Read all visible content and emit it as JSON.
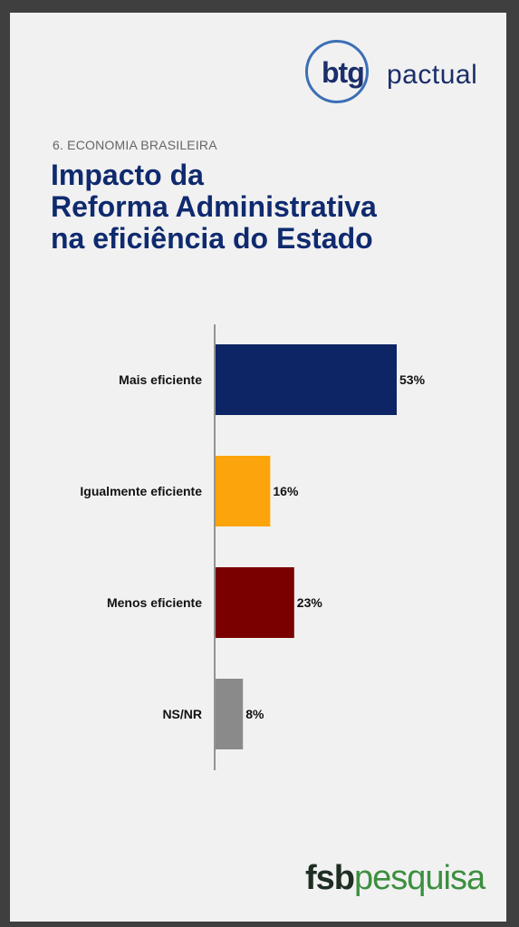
{
  "logo_top": {
    "brand": "btg",
    "brand2": "pactual"
  },
  "section_label": "6. ECONOMIA BRASILEIRA",
  "title_lines": [
    "Impacto da",
    "Reforma Administrativa",
    "na eficiência do Estado"
  ],
  "logo_bottom": {
    "part1": "fsb",
    "part2": "pesquisa"
  },
  "colors": {
    "navy": "#0d2565",
    "orange": "#fca40b",
    "maroon": "#7a0000",
    "gray": "#8a8a8a"
  },
  "chart_data": {
    "type": "bar",
    "orientation": "horizontal",
    "categories": [
      "Mais eficiente",
      "Igualmente eficiente",
      "Menos eficiente",
      "NS/NR"
    ],
    "values": [
      53,
      16,
      23,
      8
    ],
    "value_labels": [
      "53%",
      "16%",
      "23%",
      "8%"
    ],
    "bar_colors": [
      "#0d2565",
      "#fca40b",
      "#7a0000",
      "#8a8a8a"
    ],
    "xlim": [
      0,
      53
    ],
    "grid": false
  }
}
